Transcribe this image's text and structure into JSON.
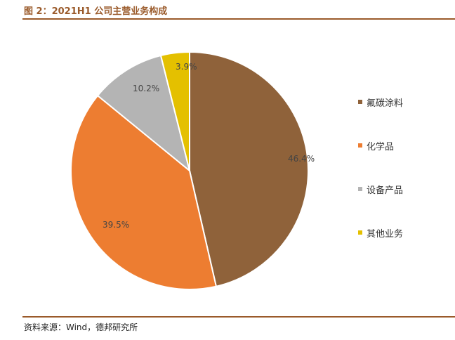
{
  "figure": {
    "title": "图 2：2021H1 公司主营业务构成",
    "source": "资料来源：Wind，德邦研究所"
  },
  "chart_data": {
    "type": "pie",
    "categories": [
      "氟碳涂料",
      "化学品",
      "设备产品",
      "其他业务"
    ],
    "values": [
      46.4,
      39.5,
      10.2,
      3.9
    ],
    "labels": [
      "46.4%",
      "39.5%",
      "10.2%",
      "3.9%"
    ],
    "colors": [
      "#8f623a",
      "#ed7d31",
      "#b4b4b4",
      "#e4c000"
    ],
    "start_angle": "top, clockwise",
    "legend_position": "right"
  }
}
